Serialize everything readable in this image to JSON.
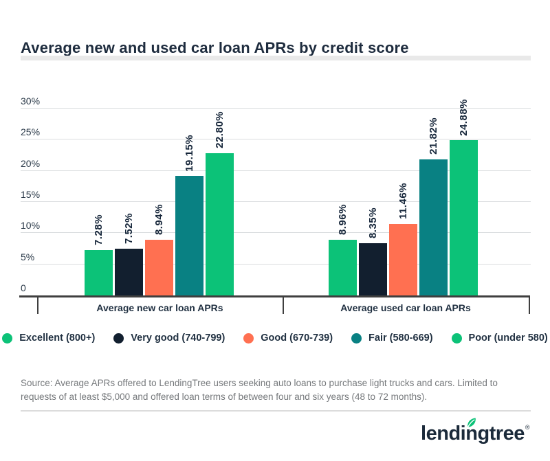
{
  "title": "Average new and used car loan APRs by credit score",
  "chart_data": {
    "type": "bar",
    "categories": [
      "Average new car loan APRs",
      "Average used car loan APRs"
    ],
    "series": [
      {
        "name": "Excellent (800+)",
        "color": "#0cc278",
        "values": [
          7.28,
          8.96
        ]
      },
      {
        "name": "Very good (740-799)",
        "color": "#121f2f",
        "values": [
          7.52,
          8.35
        ]
      },
      {
        "name": "Good (670-739)",
        "color": "#ff7051",
        "values": [
          8.94,
          11.46
        ]
      },
      {
        "name": "Fair (580-669)",
        "color": "#098183",
        "values": [
          19.15,
          21.82
        ]
      },
      {
        "name": "Poor (under 580)",
        "color": "#0cc278",
        "values": [
          22.8,
          24.88
        ]
      }
    ],
    "value_label_format": "0.00%",
    "yticks": [
      {
        "label": "30%",
        "value": 30
      },
      {
        "label": "25%",
        "value": 25
      },
      {
        "label": "20%",
        "value": 20
      },
      {
        "label": "15%",
        "value": 15
      },
      {
        "label": "10%",
        "value": 10
      },
      {
        "label": "5%",
        "value": 5
      },
      {
        "label": "0",
        "value": 0
      }
    ],
    "ylim": [
      0,
      30
    ],
    "grid": true,
    "legend_position": "bottom",
    "value_labels_rotated": true
  },
  "colors": {
    "title_text": "#1e2c3e",
    "axis": "#3f3f3f",
    "gridline": "#d9dcde",
    "source_text": "#75787b",
    "brand_green": "#0cc278",
    "brand_navy": "#1b2a3a"
  },
  "source": {
    "text": "Source: Average APRs offered to LendingTree users seeking auto loans to purchase light trucks and cars. Limited to requests of at least $5,000 and offered loan terms of between four and six years (48 to 72 months)."
  },
  "logo": {
    "text_before": "lendi",
    "leaf_letter": "n",
    "text_after": "gtree",
    "registered": "®"
  }
}
